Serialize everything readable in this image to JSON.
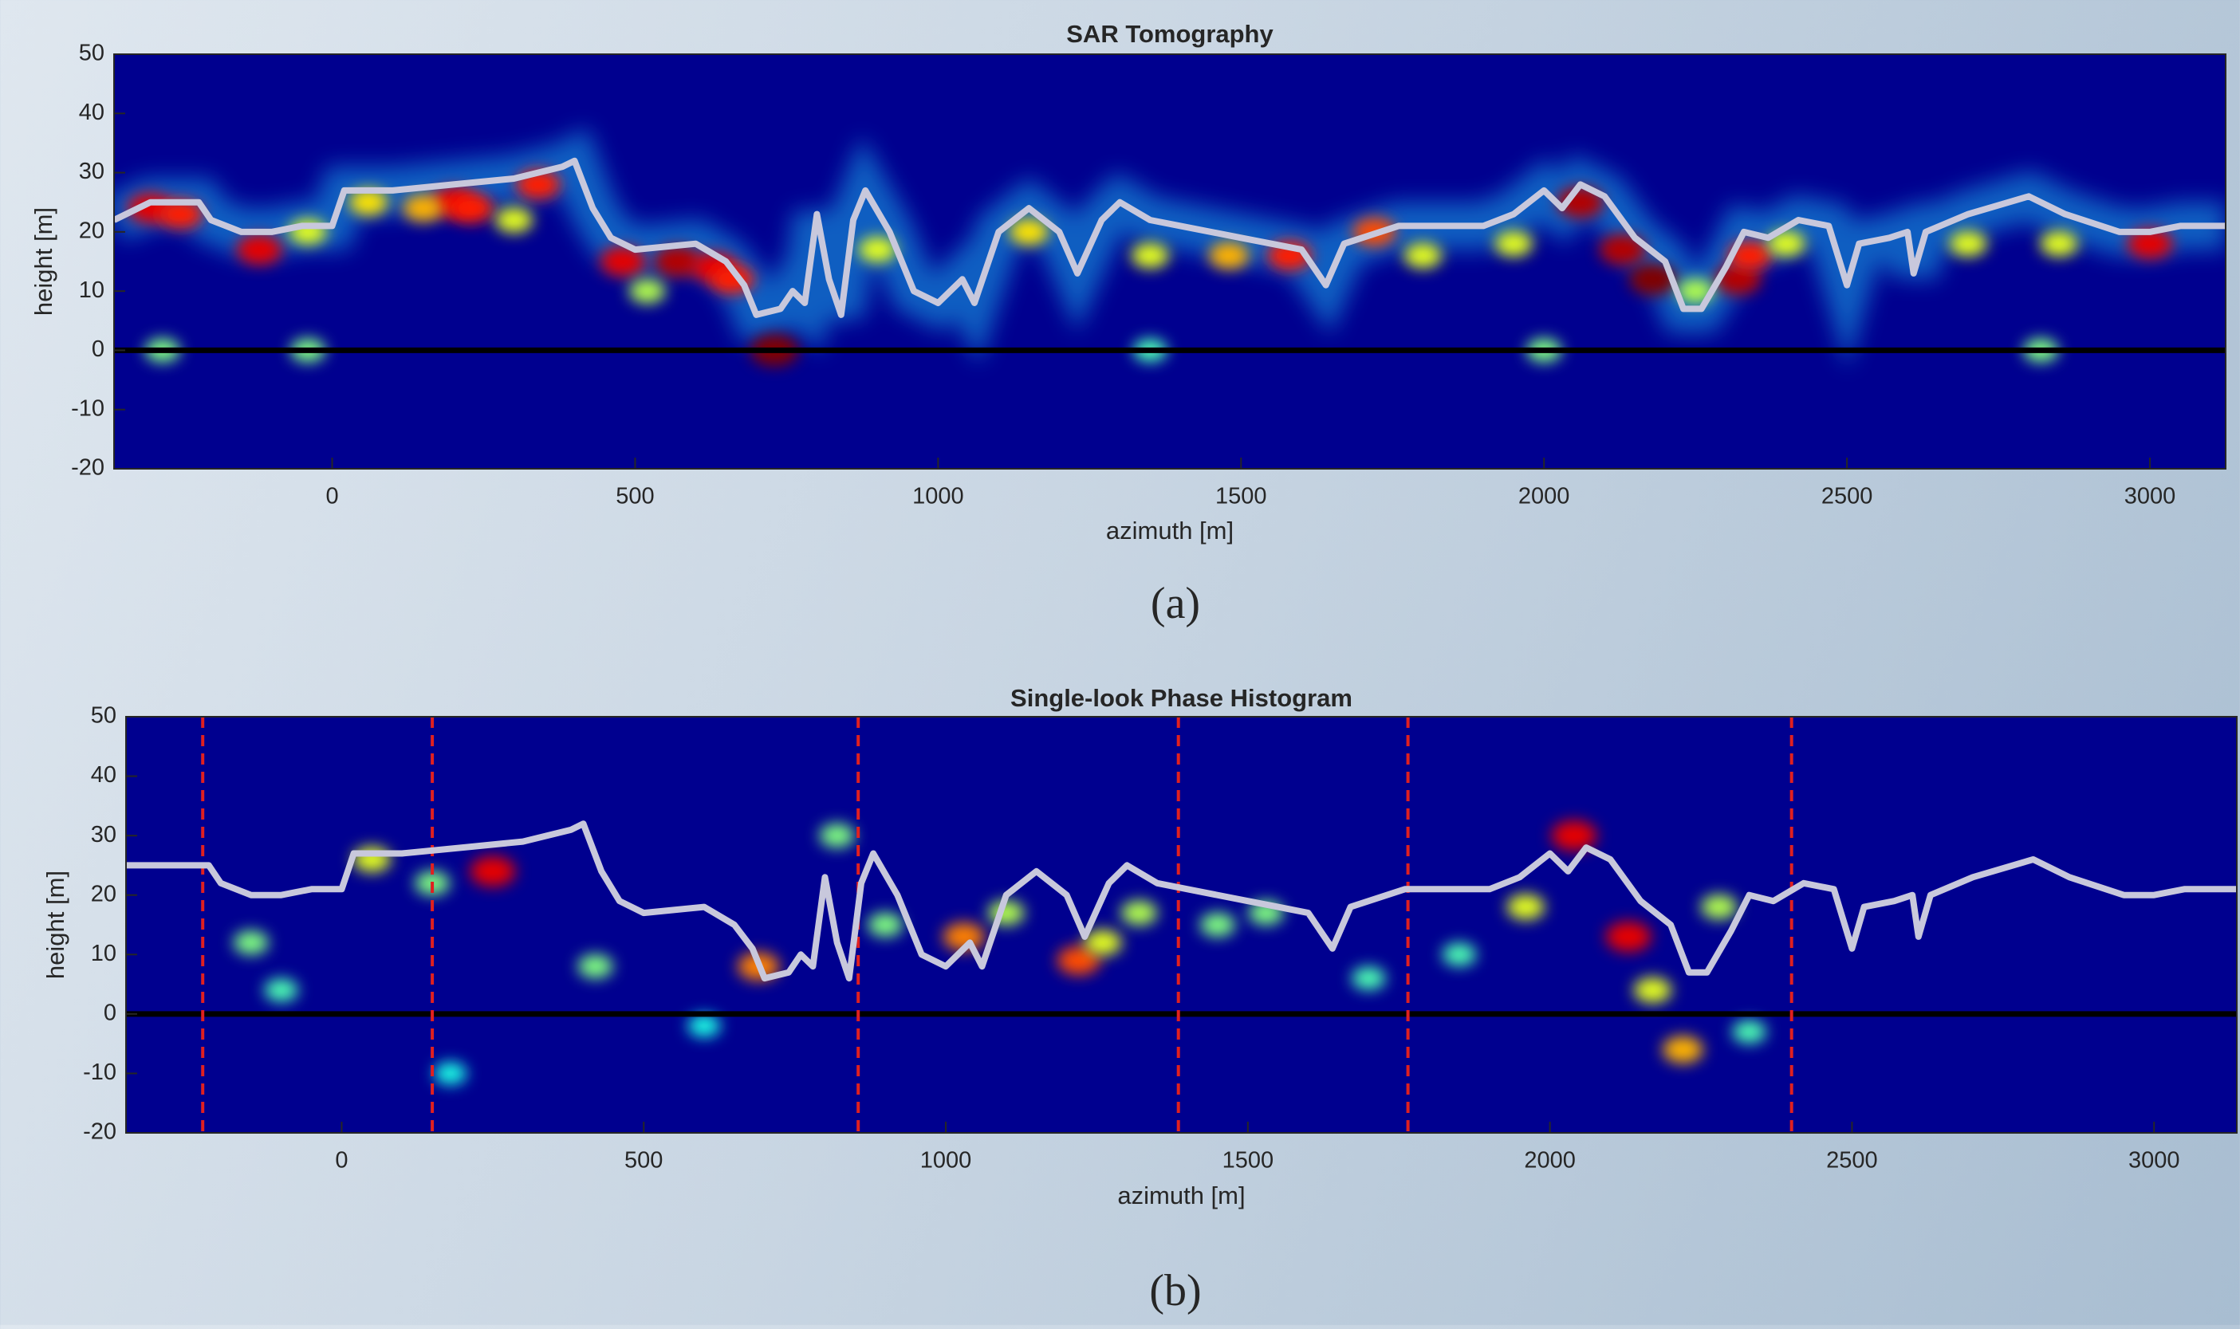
{
  "chart_data": [
    {
      "type": "heatmap",
      "title": "SAR Tomography",
      "xlabel": "azimuth [m]",
      "ylabel": "height [m]",
      "caption": "(a)",
      "xlim": [
        -360,
        3125
      ],
      "ylim": [
        -20,
        50
      ],
      "xticks": [
        0,
        500,
        1000,
        1500,
        2000,
        2500,
        3000
      ],
      "yticks": [
        -20,
        -10,
        0,
        10,
        20,
        30,
        40,
        50
      ],
      "background": "#00008f",
      "hline": 0,
      "hline_color": "#000000",
      "band_color": "#20d0ff",
      "line": {
        "color": "#c8c8dc",
        "x": [
          -360,
          -300,
          -220,
          -200,
          -150,
          -100,
          -50,
          0,
          20,
          100,
          200,
          300,
          380,
          400,
          430,
          460,
          500,
          600,
          650,
          680,
          700,
          740,
          760,
          780,
          800,
          820,
          840,
          860,
          880,
          920,
          960,
          1000,
          1040,
          1060,
          1100,
          1150,
          1200,
          1230,
          1270,
          1300,
          1350,
          1400,
          1500,
          1550,
          1600,
          1640,
          1670,
          1760,
          1900,
          1950,
          2000,
          2030,
          2060,
          2100,
          2150,
          2200,
          2230,
          2260,
          2300,
          2330,
          2370,
          2420,
          2470,
          2500,
          2520,
          2570,
          2600,
          2610,
          2630,
          2700,
          2800,
          2860,
          2950,
          3000,
          3050,
          3125
        ],
        "y": [
          22,
          25,
          25,
          22,
          20,
          20,
          21,
          21,
          27,
          27,
          28,
          29,
          31,
          32,
          24,
          19,
          17,
          18,
          15,
          11,
          6,
          7,
          10,
          8,
          23,
          12,
          6,
          22,
          27,
          20,
          10,
          8,
          12,
          8,
          20,
          24,
          20,
          13,
          22,
          25,
          22,
          21,
          19,
          18,
          17,
          11,
          18,
          21,
          21,
          23,
          27,
          24,
          28,
          26,
          19,
          15,
          7,
          7,
          14,
          20,
          19,
          22,
          21,
          11,
          18,
          19,
          20,
          13,
          20,
          23,
          26,
          23,
          20,
          20,
          21,
          21
        ]
      },
      "spots": {
        "x": [
          -300,
          -250,
          -120,
          200,
          230,
          340,
          480,
          570,
          630,
          660,
          730,
          1580,
          1720,
          2060,
          2130,
          2180,
          2320,
          2340,
          3000,
          -40,
          60,
          150,
          300,
          520,
          900,
          1150,
          1350,
          1480,
          1800,
          1950,
          2250,
          2400,
          2700,
          2850,
          -280,
          -40,
          1350,
          2000,
          2820
        ],
        "y": [
          24,
          23,
          17,
          25,
          24,
          28,
          15,
          15,
          14,
          12,
          0,
          16,
          20,
          25,
          17,
          12,
          12,
          16,
          18,
          20,
          25,
          24,
          22,
          10,
          17,
          20,
          16,
          16,
          16,
          18,
          10,
          18,
          18,
          18,
          0,
          0,
          0,
          0,
          0
        ],
        "intensity": [
          0.9,
          0.85,
          0.9,
          0.9,
          0.85,
          0.85,
          0.9,
          0.95,
          0.9,
          0.85,
          1,
          0.85,
          0.8,
          0.95,
          0.95,
          1,
          0.95,
          0.85,
          0.9,
          0.6,
          0.65,
          0.7,
          0.6,
          0.55,
          0.6,
          0.65,
          0.6,
          0.7,
          0.6,
          0.6,
          0.55,
          0.6,
          0.6,
          0.6,
          0.5,
          0.5,
          0.45,
          0.5,
          0.5
        ]
      }
    },
    {
      "type": "heatmap",
      "title": "Single-look Phase Histogram",
      "xlabel": "azimuth [m]",
      "ylabel": "height [m]",
      "caption": "(b)",
      "xlim": [
        -357,
        3137
      ],
      "ylim": [
        -20,
        50
      ],
      "xticks": [
        0,
        500,
        1000,
        1500,
        2000,
        2500,
        3000
      ],
      "yticks": [
        -20,
        -10,
        0,
        10,
        20,
        30,
        40,
        50
      ],
      "background": "#00008f",
      "hline": 0,
      "hline_color": "#000000",
      "vlines": [
        -230,
        150,
        855,
        1385,
        1765,
        2400
      ],
      "vline_color": "#e02020",
      "line": {
        "color": "#c8c8dc",
        "x": [
          -357,
          -300,
          -220,
          -200,
          -150,
          -100,
          -50,
          0,
          20,
          100,
          200,
          300,
          380,
          400,
          430,
          460,
          500,
          600,
          650,
          680,
          700,
          740,
          760,
          780,
          800,
          820,
          840,
          860,
          880,
          920,
          960,
          1000,
          1040,
          1060,
          1100,
          1150,
          1200,
          1230,
          1270,
          1300,
          1350,
          1400,
          1500,
          1550,
          1600,
          1640,
          1670,
          1760,
          1900,
          1950,
          2000,
          2030,
          2060,
          2100,
          2150,
          2200,
          2230,
          2260,
          2300,
          2330,
          2370,
          2420,
          2470,
          2500,
          2520,
          2570,
          2600,
          2610,
          2630,
          2700,
          2800,
          2860,
          2950,
          3000,
          3050,
          3137
        ],
        "y": [
          25,
          25,
          25,
          22,
          20,
          20,
          21,
          21,
          27,
          27,
          28,
          29,
          31,
          32,
          24,
          19,
          17,
          18,
          15,
          11,
          6,
          7,
          10,
          8,
          23,
          12,
          6,
          22,
          27,
          20,
          10,
          8,
          12,
          8,
          20,
          24,
          20,
          13,
          22,
          25,
          22,
          21,
          19,
          18,
          17,
          11,
          18,
          21,
          21,
          23,
          27,
          24,
          28,
          26,
          19,
          15,
          7,
          7,
          14,
          20,
          19,
          22,
          21,
          11,
          18,
          19,
          20,
          13,
          20,
          23,
          26,
          23,
          20,
          20,
          21,
          21
        ]
      },
      "spots": {
        "x": [
          250,
          2040,
          2130,
          1220,
          1030,
          690,
          2220,
          -150,
          -100,
          180,
          50,
          150,
          420,
          600,
          820,
          900,
          1100,
          1260,
          1320,
          1450,
          1530,
          1700,
          1850,
          1960,
          2170,
          2280,
          2330
        ],
        "y": [
          24,
          30,
          13,
          9,
          13,
          8,
          -6,
          12,
          4,
          -10,
          26,
          22,
          8,
          -2,
          30,
          15,
          17,
          12,
          17,
          15,
          17,
          6,
          10,
          18,
          4,
          18,
          -3
        ],
        "intensity": [
          0.9,
          0.9,
          0.9,
          0.8,
          0.75,
          0.75,
          0.7,
          0.5,
          0.45,
          0.4,
          0.6,
          0.5,
          0.5,
          0.4,
          0.5,
          0.5,
          0.55,
          0.6,
          0.55,
          0.5,
          0.5,
          0.45,
          0.45,
          0.6,
          0.6,
          0.55,
          0.45
        ]
      }
    }
  ]
}
